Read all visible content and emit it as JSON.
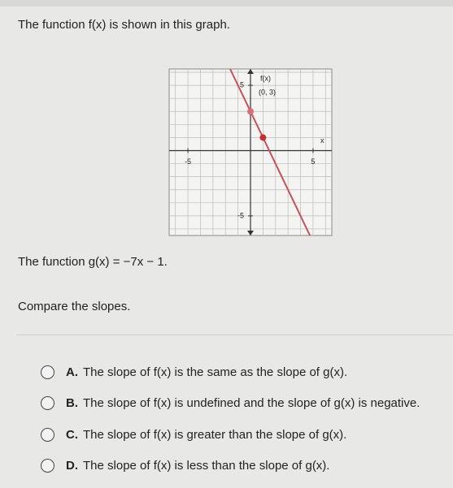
{
  "question": "The function f(x) is shown in this graph.",
  "graph": {
    "y_label": "f(x)",
    "x_label": "x",
    "point_label": "(0, 3)",
    "xlim": [
      -6.5,
      6.5
    ],
    "ylim": [
      -6.5,
      6.25
    ],
    "xticks": [
      -5,
      5
    ],
    "yticks": [
      5,
      -5
    ],
    "points": [
      {
        "x": 0,
        "y": 3
      },
      {
        "x": 1,
        "y": 1
      }
    ]
  },
  "g_function": "The function g(x) = −7x − 1.",
  "prompt": "Compare the slopes.",
  "options": [
    {
      "letter": "A.",
      "text": "The slope of f(x) is the same as the slope of g(x)."
    },
    {
      "letter": "B.",
      "text": "The slope of f(x) is undefined and the slope of g(x) is negative."
    },
    {
      "letter": "C.",
      "text": "The slope of f(x) is greater than the slope of g(x)."
    },
    {
      "letter": "D.",
      "text": "The slope of f(x) is less than the slope of g(x)."
    }
  ]
}
